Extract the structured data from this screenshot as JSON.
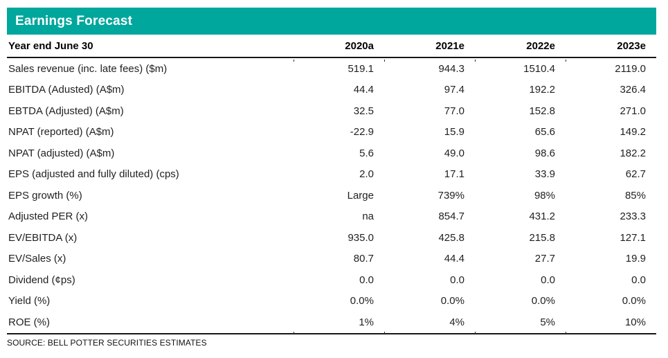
{
  "title": "Earnings Forecast",
  "table": {
    "row_header": "Year end June 30",
    "columns": [
      "2020a",
      "2021e",
      "2022e",
      "2023e"
    ],
    "rows": [
      {
        "label": "Sales revenue (inc. late fees) ($m)",
        "values": [
          "519.1",
          "944.3",
          "1510.4",
          "2119.0"
        ]
      },
      {
        "label": "EBITDA (Adusted) (A$m)",
        "values": [
          "44.4",
          "97.4",
          "192.2",
          "326.4"
        ]
      },
      {
        "label": "EBTDA (Adjusted) (A$m)",
        "values": [
          "32.5",
          "77.0",
          "152.8",
          "271.0"
        ]
      },
      {
        "label": "NPAT (reported) (A$m)",
        "values": [
          "-22.9",
          "15.9",
          "65.6",
          "149.2"
        ]
      },
      {
        "label": "NPAT (adjusted) (A$m)",
        "values": [
          "5.6",
          "49.0",
          "98.6",
          "182.2"
        ]
      },
      {
        "label": "EPS (adjusted and fully diluted) (cps)",
        "values": [
          "2.0",
          "17.1",
          "33.9",
          "62.7"
        ]
      },
      {
        "label": "EPS growth (%)",
        "values": [
          "Large",
          "739%",
          "98%",
          "85%"
        ]
      },
      {
        "label": "Adjusted PER (x)",
        "values": [
          "na",
          "854.7",
          "431.2",
          "233.3"
        ]
      },
      {
        "label": "EV/EBITDA (x)",
        "values": [
          "935.0",
          "425.8",
          "215.8",
          "127.1"
        ]
      },
      {
        "label": "EV/Sales (x)",
        "values": [
          "80.7",
          "44.4",
          "27.7",
          "19.9"
        ]
      },
      {
        "label": "Dividend (¢ps)",
        "values": [
          "0.0",
          "0.0",
          "0.0",
          "0.0"
        ]
      },
      {
        "label": "Yield (%)",
        "values": [
          "0.0%",
          "0.0%",
          "0.0%",
          "0.0%"
        ]
      },
      {
        "label": "ROE (%)",
        "values": [
          "1%",
          "4%",
          "5%",
          "10%"
        ]
      }
    ]
  },
  "source": "SOURCE: BELL POTTER SECURITIES ESTIMATES",
  "colors": {
    "accent_teal": "#00A79C",
    "rule": "#161616",
    "title_text": "#ffffff",
    "body_text": "#1f1f1f"
  }
}
